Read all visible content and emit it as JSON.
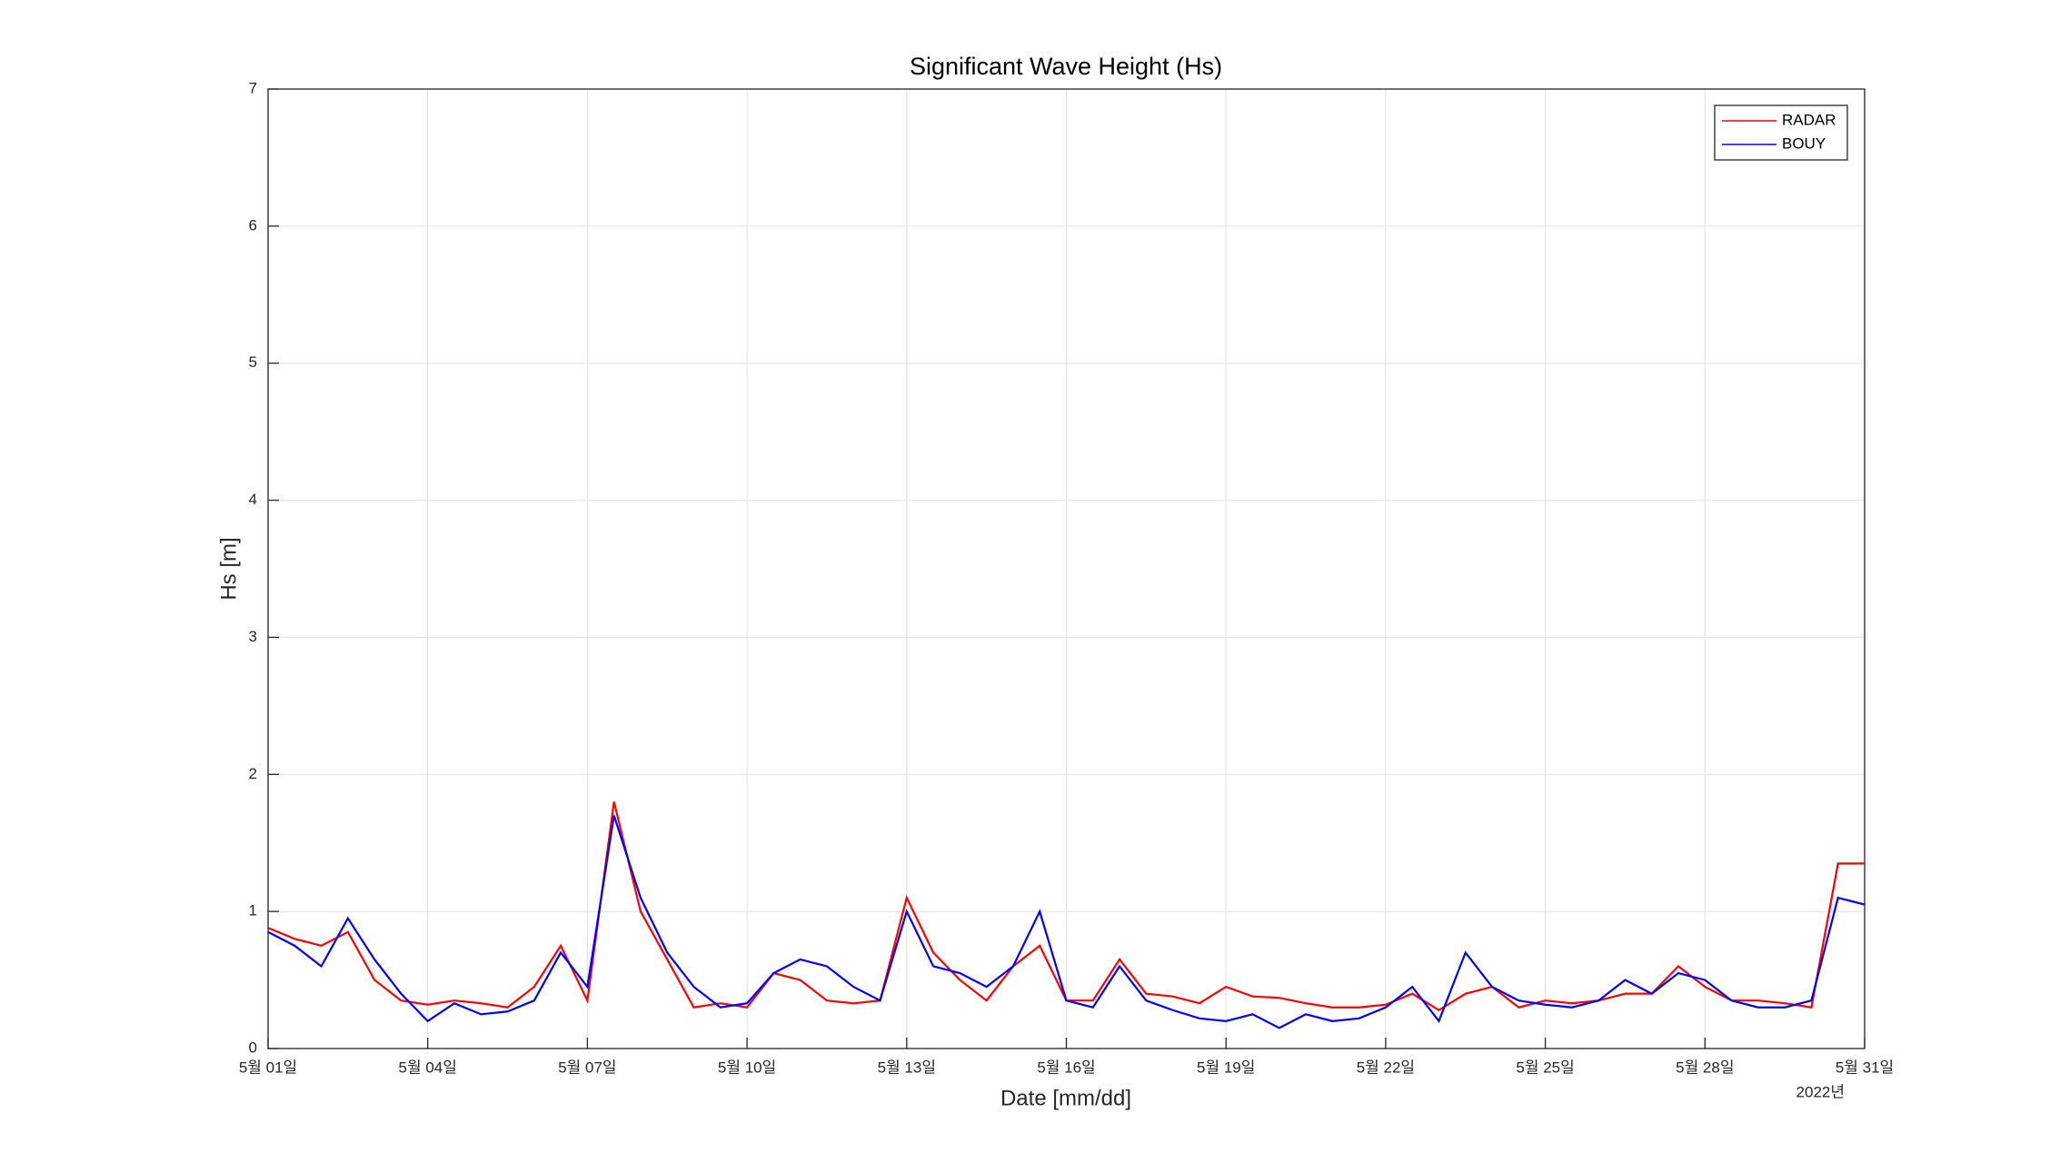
{
  "chart_data": {
    "type": "line",
    "title": "Significant Wave Height (Hs)",
    "x_label": "Date [mm/dd]",
    "y_label": "Hs [m]",
    "x_year_label": "2022년",
    "x": [
      1,
      1.5,
      2,
      2.5,
      3,
      3.5,
      4,
      4.5,
      5,
      5.5,
      6,
      6.5,
      7,
      7.5,
      8,
      8.5,
      9,
      9.5,
      10,
      10.5,
      11,
      11.5,
      12,
      12.5,
      13,
      13.5,
      14,
      14.5,
      15,
      15.5,
      16,
      16.5,
      17,
      17.5,
      18,
      18.5,
      19,
      19.5,
      20,
      20.5,
      21,
      21.5,
      22,
      22.5,
      23,
      23.5,
      24,
      24.5,
      25,
      25.5,
      26,
      26.5,
      27,
      27.5,
      28,
      28.5,
      29,
      29.5,
      30,
      30.5,
      31
    ],
    "series": [
      {
        "name": "RADAR",
        "color": "#ff0000",
        "values": [
          0.88,
          0.8,
          0.75,
          0.85,
          0.5,
          0.35,
          0.32,
          0.35,
          0.33,
          0.3,
          0.45,
          0.75,
          0.35,
          1.8,
          1.0,
          0.65,
          0.3,
          0.33,
          0.3,
          0.55,
          0.5,
          0.35,
          0.33,
          0.35,
          1.1,
          0.7,
          0.5,
          0.35,
          0.6,
          0.75,
          0.35,
          0.35,
          0.65,
          0.4,
          0.38,
          0.33,
          0.45,
          0.38,
          0.37,
          0.33,
          0.3,
          0.3,
          0.32,
          0.4,
          0.28,
          0.4,
          0.45,
          0.3,
          0.35,
          0.33,
          0.35,
          0.4,
          0.4,
          0.6,
          0.45,
          0.35,
          0.35,
          0.33,
          0.3,
          1.35,
          1.35
        ]
      },
      {
        "name": "BOUY",
        "color": "#0000ff",
        "values": [
          0.85,
          0.75,
          0.6,
          0.95,
          0.65,
          0.4,
          0.2,
          0.33,
          0.25,
          0.27,
          0.35,
          0.7,
          0.45,
          1.7,
          1.1,
          0.7,
          0.45,
          0.3,
          0.33,
          0.55,
          0.65,
          0.6,
          0.45,
          0.35,
          1.0,
          0.6,
          0.55,
          0.45,
          0.6,
          1.0,
          0.35,
          0.3,
          0.6,
          0.35,
          0.28,
          0.22,
          0.2,
          0.25,
          0.15,
          0.25,
          0.2,
          0.22,
          0.3,
          0.45,
          0.2,
          0.7,
          0.45,
          0.35,
          0.32,
          0.3,
          0.35,
          0.5,
          0.4,
          0.55,
          0.5,
          0.35,
          0.3,
          0.3,
          0.35,
          1.1,
          1.05
        ]
      }
    ],
    "xlim": [
      1,
      31
    ],
    "xticks": [
      {
        "value": 1,
        "label": "5월 01일"
      },
      {
        "value": 4,
        "label": "5월 04일"
      },
      {
        "value": 7,
        "label": "5월 07일"
      },
      {
        "value": 10,
        "label": "5월 10일"
      },
      {
        "value": 13,
        "label": "5월 13일"
      },
      {
        "value": 16,
        "label": "5월 16일"
      },
      {
        "value": 19,
        "label": "5월 19일"
      },
      {
        "value": 22,
        "label": "5월 22일"
      },
      {
        "value": 25,
        "label": "5월 25일"
      },
      {
        "value": 28,
        "label": "5월 28일"
      },
      {
        "value": 31,
        "label": "5월 31일"
      }
    ],
    "ylim": [
      0,
      7
    ],
    "yticks": [
      0,
      1,
      2,
      3,
      4,
      5,
      6,
      7
    ],
    "grid": true,
    "legend": "top-right"
  }
}
